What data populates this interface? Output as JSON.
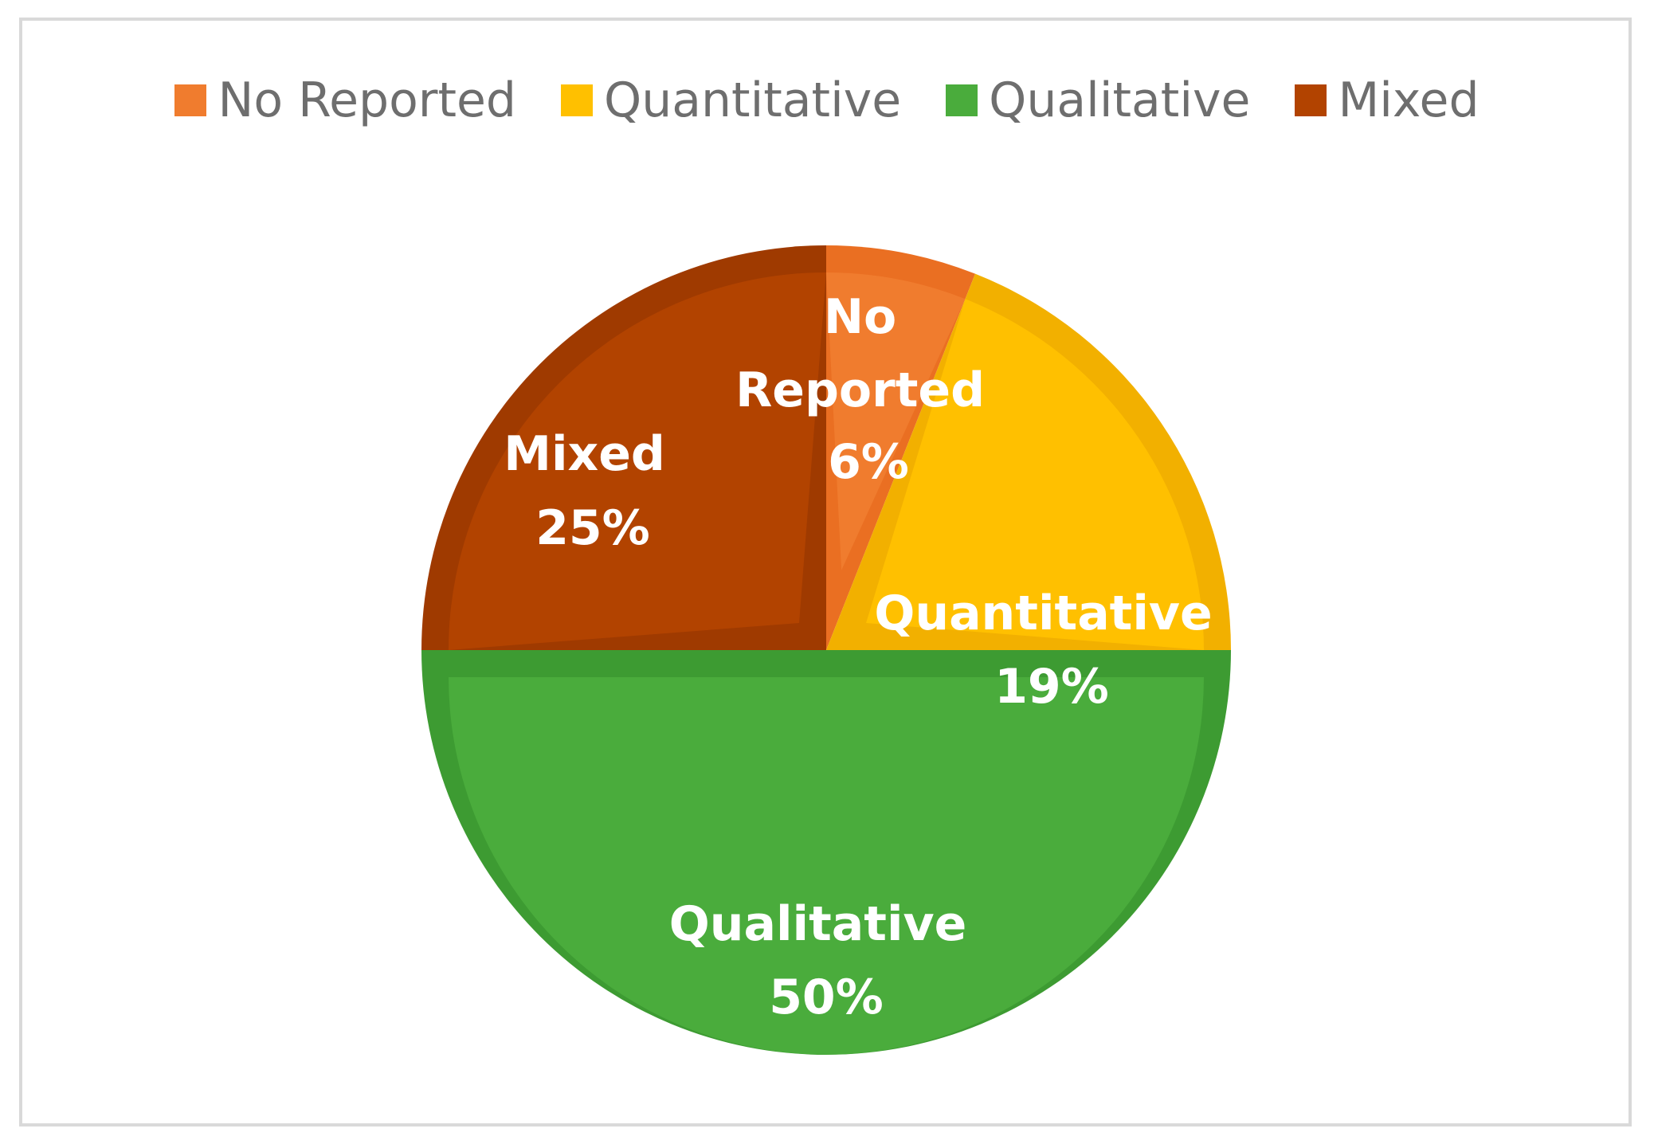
{
  "chart_data": {
    "type": "pie",
    "title": "",
    "legend_position": "top",
    "start_angle_deg": 0,
    "direction": "clockwise",
    "slices": [
      {
        "name": "No Reported",
        "value": 6,
        "label_name": "No Reported",
        "label_pct": "6%",
        "color": "#f07c2e",
        "border_color": "#ea6f22"
      },
      {
        "name": "Quantitative",
        "value": 19,
        "label_name": "Quantitative",
        "label_pct": "19%",
        "color": "#ffc000",
        "border_color": "#f2b000"
      },
      {
        "name": "Qualitative",
        "value": 50,
        "label_name": "Qualitative",
        "label_pct": "50%",
        "color": "#4aac3c",
        "border_color": "#3d9b32"
      },
      {
        "name": "Mixed",
        "value": 25,
        "label_name": "Mixed",
        "label_pct": "25%",
        "color": "#b24300",
        "border_color": "#9f3a00"
      }
    ]
  }
}
